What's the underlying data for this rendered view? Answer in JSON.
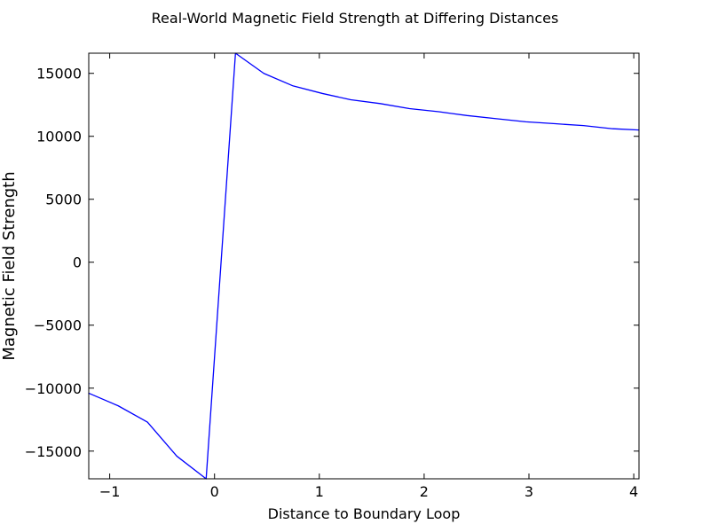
{
  "chart_data": {
    "type": "line",
    "title": "Real-World Magnetic Field Strength at Differing Distances",
    "xlabel": "Distance to Boundary Loop",
    "ylabel": "Magnetic Field Strength",
    "xlim": [
      -1.2,
      4.05
    ],
    "ylim": [
      -17200,
      16600
    ],
    "x_ticks": [
      -1,
      0,
      1,
      2,
      3,
      4
    ],
    "x_tick_labels": [
      "−1",
      "0",
      "1",
      "2",
      "3",
      "4"
    ],
    "y_ticks": [
      -15000,
      -10000,
      -5000,
      0,
      5000,
      10000,
      15000
    ],
    "y_tick_labels": [
      "−15000",
      "−10000",
      "−5000",
      "0",
      "5000",
      "10000",
      "15000"
    ],
    "grid": false,
    "line_color": "#0000ff",
    "series": [
      {
        "x": [
          -1.2,
          -0.92,
          -0.64,
          -0.36,
          -0.08,
          0.2,
          0.47,
          0.75,
          1.03,
          1.3,
          1.58,
          1.86,
          2.14,
          2.41,
          2.69,
          2.97,
          3.25,
          3.52,
          3.8,
          4.05
        ],
        "y": [
          -10400,
          -11400,
          -12700,
          -15400,
          -17200,
          16600,
          15000,
          14000,
          13400,
          12900,
          12600,
          12200,
          11950,
          11650,
          11400,
          11150,
          11000,
          10850,
          10600,
          10500
        ]
      }
    ]
  }
}
